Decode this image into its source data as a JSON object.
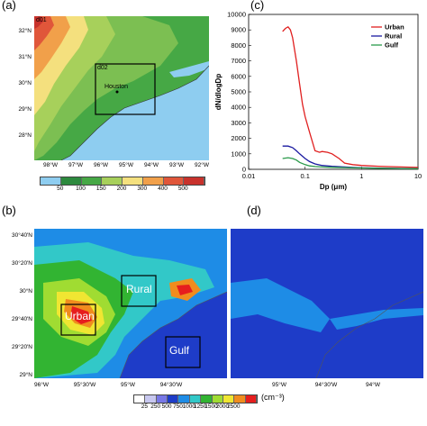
{
  "panels": {
    "a": {
      "label": "(a)",
      "domain_labels": [
        "d01",
        "d02"
      ],
      "city": "Houston",
      "lat_ticks": [
        "32°N",
        "31°N",
        "30°N",
        "29°N",
        "28°N"
      ],
      "lon_ticks": [
        "98°W",
        "97°W",
        "96°W",
        "95°W",
        "94°W",
        "93°W",
        "92°W"
      ],
      "colorbar": {
        "ticks": [
          "50",
          "100",
          "150",
          "200",
          "300",
          "400",
          "500"
        ],
        "colors": [
          "#8ecdf0",
          "#2d8a3e",
          "#46a845",
          "#a7d05b",
          "#f4e07e",
          "#f1a04a",
          "#e0563a",
          "#c8322c"
        ]
      }
    },
    "b": {
      "label": "(b)",
      "regions": [
        "Urban",
        "Rural",
        "Gulf"
      ],
      "lat_ticks": [
        "30°40'N",
        "30°20'N",
        "30°N",
        "29°40'N",
        "29°20'N",
        "29°N"
      ],
      "lon_ticks": [
        "96°W",
        "95°30'W",
        "95°W",
        "94°30'W"
      ]
    },
    "d": {
      "label": "(d)",
      "lon_ticks": [
        "95°W",
        "94°30'W",
        "94°W"
      ]
    },
    "c": {
      "label": "(c)"
    },
    "shared_colorbar": {
      "ticks": [
        "25",
        "250",
        "500",
        "750",
        "1000",
        "1250",
        "1500",
        "2000",
        "2500"
      ],
      "unit": "(cm⁻³)",
      "colors": [
        "#ffffff",
        "#c8c8f0",
        "#7878e6",
        "#1e3cc8",
        "#1e8ce6",
        "#32c8c8",
        "#32b432",
        "#a0dc32",
        "#f0e632",
        "#f08c1e",
        "#e61e1e"
      ]
    }
  },
  "chart_data": {
    "type": "line",
    "xlabel": "Dp (μm)",
    "ylabel": "dN/dlogDp",
    "xscale": "log",
    "xlim": [
      0.01,
      10
    ],
    "ylim": [
      0,
      10000
    ],
    "x_ticks": [
      "0.01",
      "0.1",
      "1",
      "10"
    ],
    "y_ticks": [
      "0",
      "1000",
      "2000",
      "3000",
      "4000",
      "5000",
      "6000",
      "7000",
      "8000",
      "9000",
      "10000"
    ],
    "legend_position": "top-right",
    "series": [
      {
        "name": "Urban",
        "color": "#e02020",
        "x": [
          0.04,
          0.045,
          0.05,
          0.055,
          0.06,
          0.07,
          0.08,
          0.09,
          0.1,
          0.12,
          0.15,
          0.18,
          0.2,
          0.25,
          0.3,
          0.4,
          0.5,
          0.7,
          1,
          2,
          5,
          10
        ],
        "y": [
          8900,
          9100,
          9200,
          9000,
          8500,
          7000,
          5500,
          4200,
          3400,
          2400,
          1200,
          1100,
          1150,
          1100,
          1000,
          700,
          400,
          300,
          250,
          200,
          150,
          120
        ]
      },
      {
        "name": "Rural",
        "color": "#1a1aa0",
        "x": [
          0.04,
          0.05,
          0.06,
          0.07,
          0.08,
          0.1,
          0.12,
          0.15,
          0.2,
          0.3,
          0.5,
          0.7,
          1,
          2,
          5,
          10
        ],
        "y": [
          1500,
          1500,
          1400,
          1200,
          1000,
          700,
          500,
          350,
          250,
          200,
          150,
          120,
          100,
          80,
          60,
          50
        ]
      },
      {
        "name": "Gulf",
        "color": "#2a9a4a",
        "x": [
          0.04,
          0.05,
          0.06,
          0.07,
          0.08,
          0.1,
          0.12,
          0.15,
          0.2,
          0.3,
          0.5,
          0.7,
          1,
          2,
          5,
          10
        ],
        "y": [
          700,
          750,
          700,
          600,
          450,
          300,
          220,
          180,
          150,
          130,
          110,
          100,
          90,
          70,
          50,
          40
        ]
      }
    ]
  }
}
